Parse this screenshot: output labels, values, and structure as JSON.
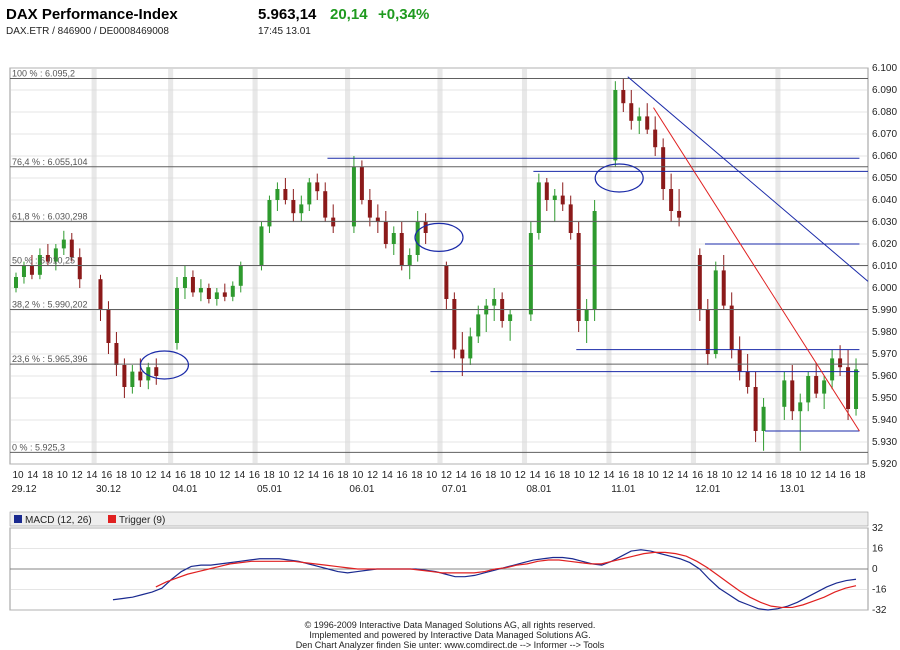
{
  "header": {
    "title": "DAX Performance-Index",
    "subtitle": "DAX.ETR  /  846900  /  DE0008469008",
    "price": "5.963,14",
    "change": "20,14",
    "change_pct": "+0,34%",
    "time": "17:45   13.01"
  },
  "colors": {
    "up": "#2e9a2e",
    "down": "#8b1a1a",
    "level_line": "#1a2aa8",
    "fib_line": "#606060",
    "trend_red": "#e02020",
    "macd": "#1a2a90",
    "trigger": "#e02020",
    "grid": "#cccccc",
    "session_band": "#d8d8d8"
  },
  "chart_data": [
    {
      "type": "candlestick",
      "title": "DAX Performance-Index",
      "ylim": [
        5920,
        6100
      ],
      "yticks": [
        "6.100",
        "6.090",
        "6.080",
        "6.070",
        "6.060",
        "6.050",
        "6.040",
        "6.030",
        "6.020",
        "6.010",
        "6.000",
        "5.990",
        "5.980",
        "5.970",
        "5.960",
        "5.950",
        "5.940",
        "5.930",
        "5.920"
      ],
      "ytick_values": [
        6100,
        6090,
        6080,
        6070,
        6060,
        6050,
        6040,
        6030,
        6020,
        6010,
        6000,
        5990,
        5980,
        5970,
        5960,
        5950,
        5940,
        5930,
        5920
      ],
      "hour_labels": [
        "10",
        "14",
        "18",
        "10",
        "12",
        "14",
        "16",
        "18",
        "10",
        "12",
        "14",
        "16",
        "18",
        "10",
        "12",
        "14",
        "16",
        "18",
        "10",
        "12",
        "14",
        "16",
        "18",
        "10",
        "12",
        "14",
        "16",
        "18",
        "10",
        "12",
        "14",
        "16",
        "18",
        "10",
        "12",
        "14",
        "16",
        "18",
        "10",
        "12",
        "14",
        "16",
        "18",
        "10",
        "12",
        "14",
        "16",
        "18",
        "10",
        "12",
        "14",
        "16",
        "18",
        "10",
        "12",
        "14",
        "16",
        "18"
      ],
      "date_labels": [
        "29.12",
        "30.12",
        "04.01",
        "05.01",
        "06.01",
        "07.01",
        "08.01",
        "11.01",
        "12.01",
        "13.01"
      ],
      "fib_levels": [
        {
          "label": "100 % : 6.095,2",
          "value": 6095.2
        },
        {
          "label": "76,4 % : 6.055,104",
          "value": 6055.104
        },
        {
          "label": "61,8 % : 6.030,298",
          "value": 6030.298
        },
        {
          "label": "50 % : 6.010,25",
          "value": 6010.25
        },
        {
          "label": "38,2 % : 5.990,202",
          "value": 5990.202
        },
        {
          "label": "23,6 % : 5.965,396",
          "value": 5965.396
        },
        {
          "label": "0 % : 5.925,3",
          "value": 5925.3
        }
      ],
      "hlines": [
        {
          "value": 6059,
          "from": 0.37,
          "to": 0.99
        },
        {
          "value": 6053,
          "from": 0.61,
          "to": 1.0
        },
        {
          "value": 6020,
          "from": 0.81,
          "to": 0.99
        },
        {
          "value": 5972,
          "from": 0.66,
          "to": 0.99
        },
        {
          "value": 5962,
          "from": 0.49,
          "to": 0.99
        },
        {
          "value": 5935,
          "from": 0.88,
          "to": 0.99
        }
      ],
      "trendlines": [
        {
          "color": "blue",
          "from": [
            0.72,
            6096
          ],
          "to": [
            1.0,
            6003
          ]
        },
        {
          "color": "red",
          "from": [
            0.75,
            6082
          ],
          "to": [
            0.99,
            5935
          ]
        }
      ],
      "ellipses": [
        {
          "x": 0.18,
          "y": 5965
        },
        {
          "x": 0.5,
          "y": 6023
        },
        {
          "x": 0.71,
          "y": 6050
        }
      ],
      "series": [
        {
          "date": "29.12",
          "values": [
            [
              6000,
              6007,
              5998,
              6005
            ],
            [
              6005,
              6012,
              6002,
              6010
            ],
            [
              6010,
              6015,
              6004,
              6006
            ],
            [
              6006,
              6018,
              6004,
              6015
            ],
            [
              6015,
              6020,
              6010,
              6012
            ],
            [
              6012,
              6020,
              6008,
              6018
            ],
            [
              6018,
              6026,
              6015,
              6022
            ],
            [
              6022,
              6025,
              6012,
              6014
            ],
            [
              6014,
              6018,
              6000,
              6004
            ]
          ]
        },
        {
          "date": "30.12",
          "values": [
            [
              6004,
              6006,
              5985,
              5990
            ],
            [
              5990,
              5994,
              5970,
              5975
            ],
            [
              5975,
              5980,
              5960,
              5965
            ],
            [
              5965,
              5968,
              5950,
              5955
            ],
            [
              5955,
              5965,
              5952,
              5962
            ],
            [
              5962,
              5968,
              5955,
              5958
            ],
            [
              5958,
              5966,
              5954,
              5964
            ],
            [
              5964,
              5968,
              5956,
              5960
            ]
          ]
        },
        {
          "date": "04.01",
          "values": [
            [
              5975,
              6005,
              5972,
              6000
            ],
            [
              6000,
              6010,
              5995,
              6005
            ],
            [
              6005,
              6008,
              5996,
              5998
            ],
            [
              5998,
              6004,
              5994,
              6000
            ],
            [
              6000,
              6002,
              5993,
              5995
            ],
            [
              5995,
              6000,
              5992,
              5998
            ],
            [
              5998,
              6002,
              5994,
              5996
            ],
            [
              5996,
              6003,
              5994,
              6001
            ],
            [
              6001,
              6012,
              5998,
              6010
            ]
          ]
        },
        {
          "date": "05.01",
          "values": [
            [
              6010,
              6030,
              6008,
              6028
            ],
            [
              6028,
              6042,
              6025,
              6040
            ],
            [
              6040,
              6048,
              6035,
              6045
            ],
            [
              6045,
              6050,
              6038,
              6040
            ],
            [
              6040,
              6045,
              6030,
              6034
            ],
            [
              6034,
              6042,
              6030,
              6038
            ],
            [
              6038,
              6050,
              6035,
              6048
            ],
            [
              6048,
              6052,
              6040,
              6044
            ],
            [
              6044,
              6048,
              6030,
              6032
            ],
            [
              6032,
              6038,
              6025,
              6028
            ]
          ]
        },
        {
          "date": "06.01",
          "values": [
            [
              6028,
              6060,
              6025,
              6055
            ],
            [
              6055,
              6058,
              6038,
              6040
            ],
            [
              6040,
              6045,
              6028,
              6032
            ],
            [
              6032,
              6038,
              6025,
              6030
            ],
            [
              6030,
              6035,
              6018,
              6020
            ],
            [
              6020,
              6028,
              6015,
              6025
            ],
            [
              6025,
              6030,
              6008,
              6010
            ],
            [
              6010,
              6018,
              6004,
              6015
            ],
            [
              6015,
              6035,
              6012,
              6030
            ],
            [
              6030,
              6034,
              6020,
              6025
            ]
          ]
        },
        {
          "date": "07.01",
          "values": [
            [
              6010,
              6012,
              5990,
              5995
            ],
            [
              5995,
              5998,
              5968,
              5972
            ],
            [
              5972,
              5980,
              5960,
              5968
            ],
            [
              5968,
              5982,
              5965,
              5978
            ],
            [
              5978,
              5992,
              5975,
              5988
            ],
            [
              5988,
              5995,
              5980,
              5992
            ],
            [
              5992,
              6000,
              5985,
              5995
            ],
            [
              5995,
              5998,
              5982,
              5985
            ],
            [
              5985,
              5990,
              5976,
              5988
            ]
          ]
        },
        {
          "date": "08.01",
          "values": [
            [
              5988,
              6030,
              5985,
              6025
            ],
            [
              6025,
              6052,
              6022,
              6048
            ],
            [
              6048,
              6050,
              6035,
              6040
            ],
            [
              6040,
              6045,
              6030,
              6042
            ],
            [
              6042,
              6048,
              6035,
              6038
            ],
            [
              6038,
              6042,
              6022,
              6025
            ],
            [
              6025,
              6030,
              5980,
              5985
            ],
            [
              5985,
              5995,
              5975,
              5990
            ],
            [
              5990,
              6040,
              5985,
              6035
            ]
          ]
        },
        {
          "date": "11.01",
          "values": [
            [
              6058,
              6094,
              6055,
              6090
            ],
            [
              6090,
              6095,
              6080,
              6084
            ],
            [
              6084,
              6090,
              6072,
              6076
            ],
            [
              6076,
              6082,
              6070,
              6078
            ],
            [
              6078,
              6084,
              6070,
              6072
            ],
            [
              6072,
              6078,
              6060,
              6064
            ],
            [
              6064,
              6068,
              6040,
              6045
            ],
            [
              6045,
              6052,
              6030,
              6035
            ],
            [
              6035,
              6045,
              6028,
              6032
            ]
          ]
        },
        {
          "date": "12.01",
          "values": [
            [
              6015,
              6018,
              5985,
              5990
            ],
            [
              5990,
              5995,
              5965,
              5970
            ],
            [
              5970,
              6012,
              5968,
              6008
            ],
            [
              6008,
              6015,
              5990,
              5992
            ],
            [
              5992,
              5998,
              5968,
              5972
            ],
            [
              5972,
              5978,
              5958,
              5962
            ],
            [
              5962,
              5970,
              5952,
              5955
            ],
            [
              5955,
              5962,
              5930,
              5935
            ],
            [
              5935,
              5950,
              5926,
              5946
            ]
          ]
        },
        {
          "date": "13.01",
          "values": [
            [
              5946,
              5962,
              5940,
              5958
            ],
            [
              5958,
              5965,
              5940,
              5944
            ],
            [
              5944,
              5952,
              5926,
              5948
            ],
            [
              5948,
              5962,
              5944,
              5960
            ],
            [
              5960,
              5966,
              5950,
              5952
            ],
            [
              5952,
              5960,
              5945,
              5958
            ],
            [
              5958,
              5972,
              5954,
              5968
            ],
            [
              5968,
              5974,
              5960,
              5964
            ],
            [
              5964,
              5972,
              5940,
              5945
            ],
            [
              5945,
              5968,
              5942,
              5963
            ]
          ]
        }
      ]
    },
    {
      "type": "line",
      "title": "MACD (12, 26)",
      "legend": [
        {
          "name": "MACD (12, 26)",
          "color": "#1a2a90"
        },
        {
          "name": "Trigger (9)",
          "color": "#e02020"
        }
      ],
      "ylim": [
        -32,
        32
      ],
      "yticks": [
        "32",
        "16",
        "0",
        "-16",
        "-32"
      ],
      "ytick_values": [
        32,
        16,
        0,
        -16,
        -32
      ],
      "series": [
        {
          "name": "MACD (12, 26)",
          "x_start": 0.12,
          "values": [
            -24,
            -23,
            -22,
            -20,
            -18,
            -15,
            -8,
            -2,
            2,
            3,
            3,
            4,
            5,
            6,
            7,
            8,
            8,
            8,
            7,
            6,
            4,
            2,
            0,
            -2,
            -3,
            -2,
            -1,
            0,
            0,
            0,
            0,
            0,
            -1,
            -2,
            -4,
            -6,
            -6,
            -5,
            -3,
            -1,
            1,
            3,
            5,
            7,
            8,
            9,
            9,
            8,
            6,
            4,
            3,
            6,
            10,
            14,
            15,
            14,
            12,
            10,
            8,
            5,
            0,
            -8,
            -15,
            -20,
            -25,
            -28,
            -31,
            -32,
            -31,
            -29,
            -26,
            -22,
            -18,
            -14,
            -11,
            -9,
            -8
          ]
        },
        {
          "name": "Trigger (9)",
          "x_start": 0.17,
          "values": [
            -14,
            -10,
            -7,
            -4,
            -2,
            0,
            2,
            4,
            5,
            6,
            6,
            6,
            6,
            6,
            5,
            4,
            3,
            2,
            1,
            0,
            0,
            0,
            0,
            0,
            0,
            -1,
            -2,
            -3,
            -3,
            -3,
            -3,
            -2,
            0,
            1,
            3,
            4,
            6,
            7,
            7,
            6,
            5,
            4,
            4,
            6,
            8,
            10,
            12,
            13,
            13,
            12,
            10,
            6,
            1,
            -5,
            -11,
            -17,
            -22,
            -26,
            -29,
            -30,
            -30,
            -28,
            -25,
            -22,
            -18,
            -15,
            -13
          ]
        }
      ]
    }
  ],
  "footer": {
    "line1": "© 1996-2009 Interactive Data Managed Solutions AG, all rights reserved.",
    "line2": "Implemented and powered by  Interactive Data Managed Solutions AG.",
    "line3": "Den Chart Analyzer finden Sie unter: www.comdirect.de --> Informer --> Tools"
  }
}
